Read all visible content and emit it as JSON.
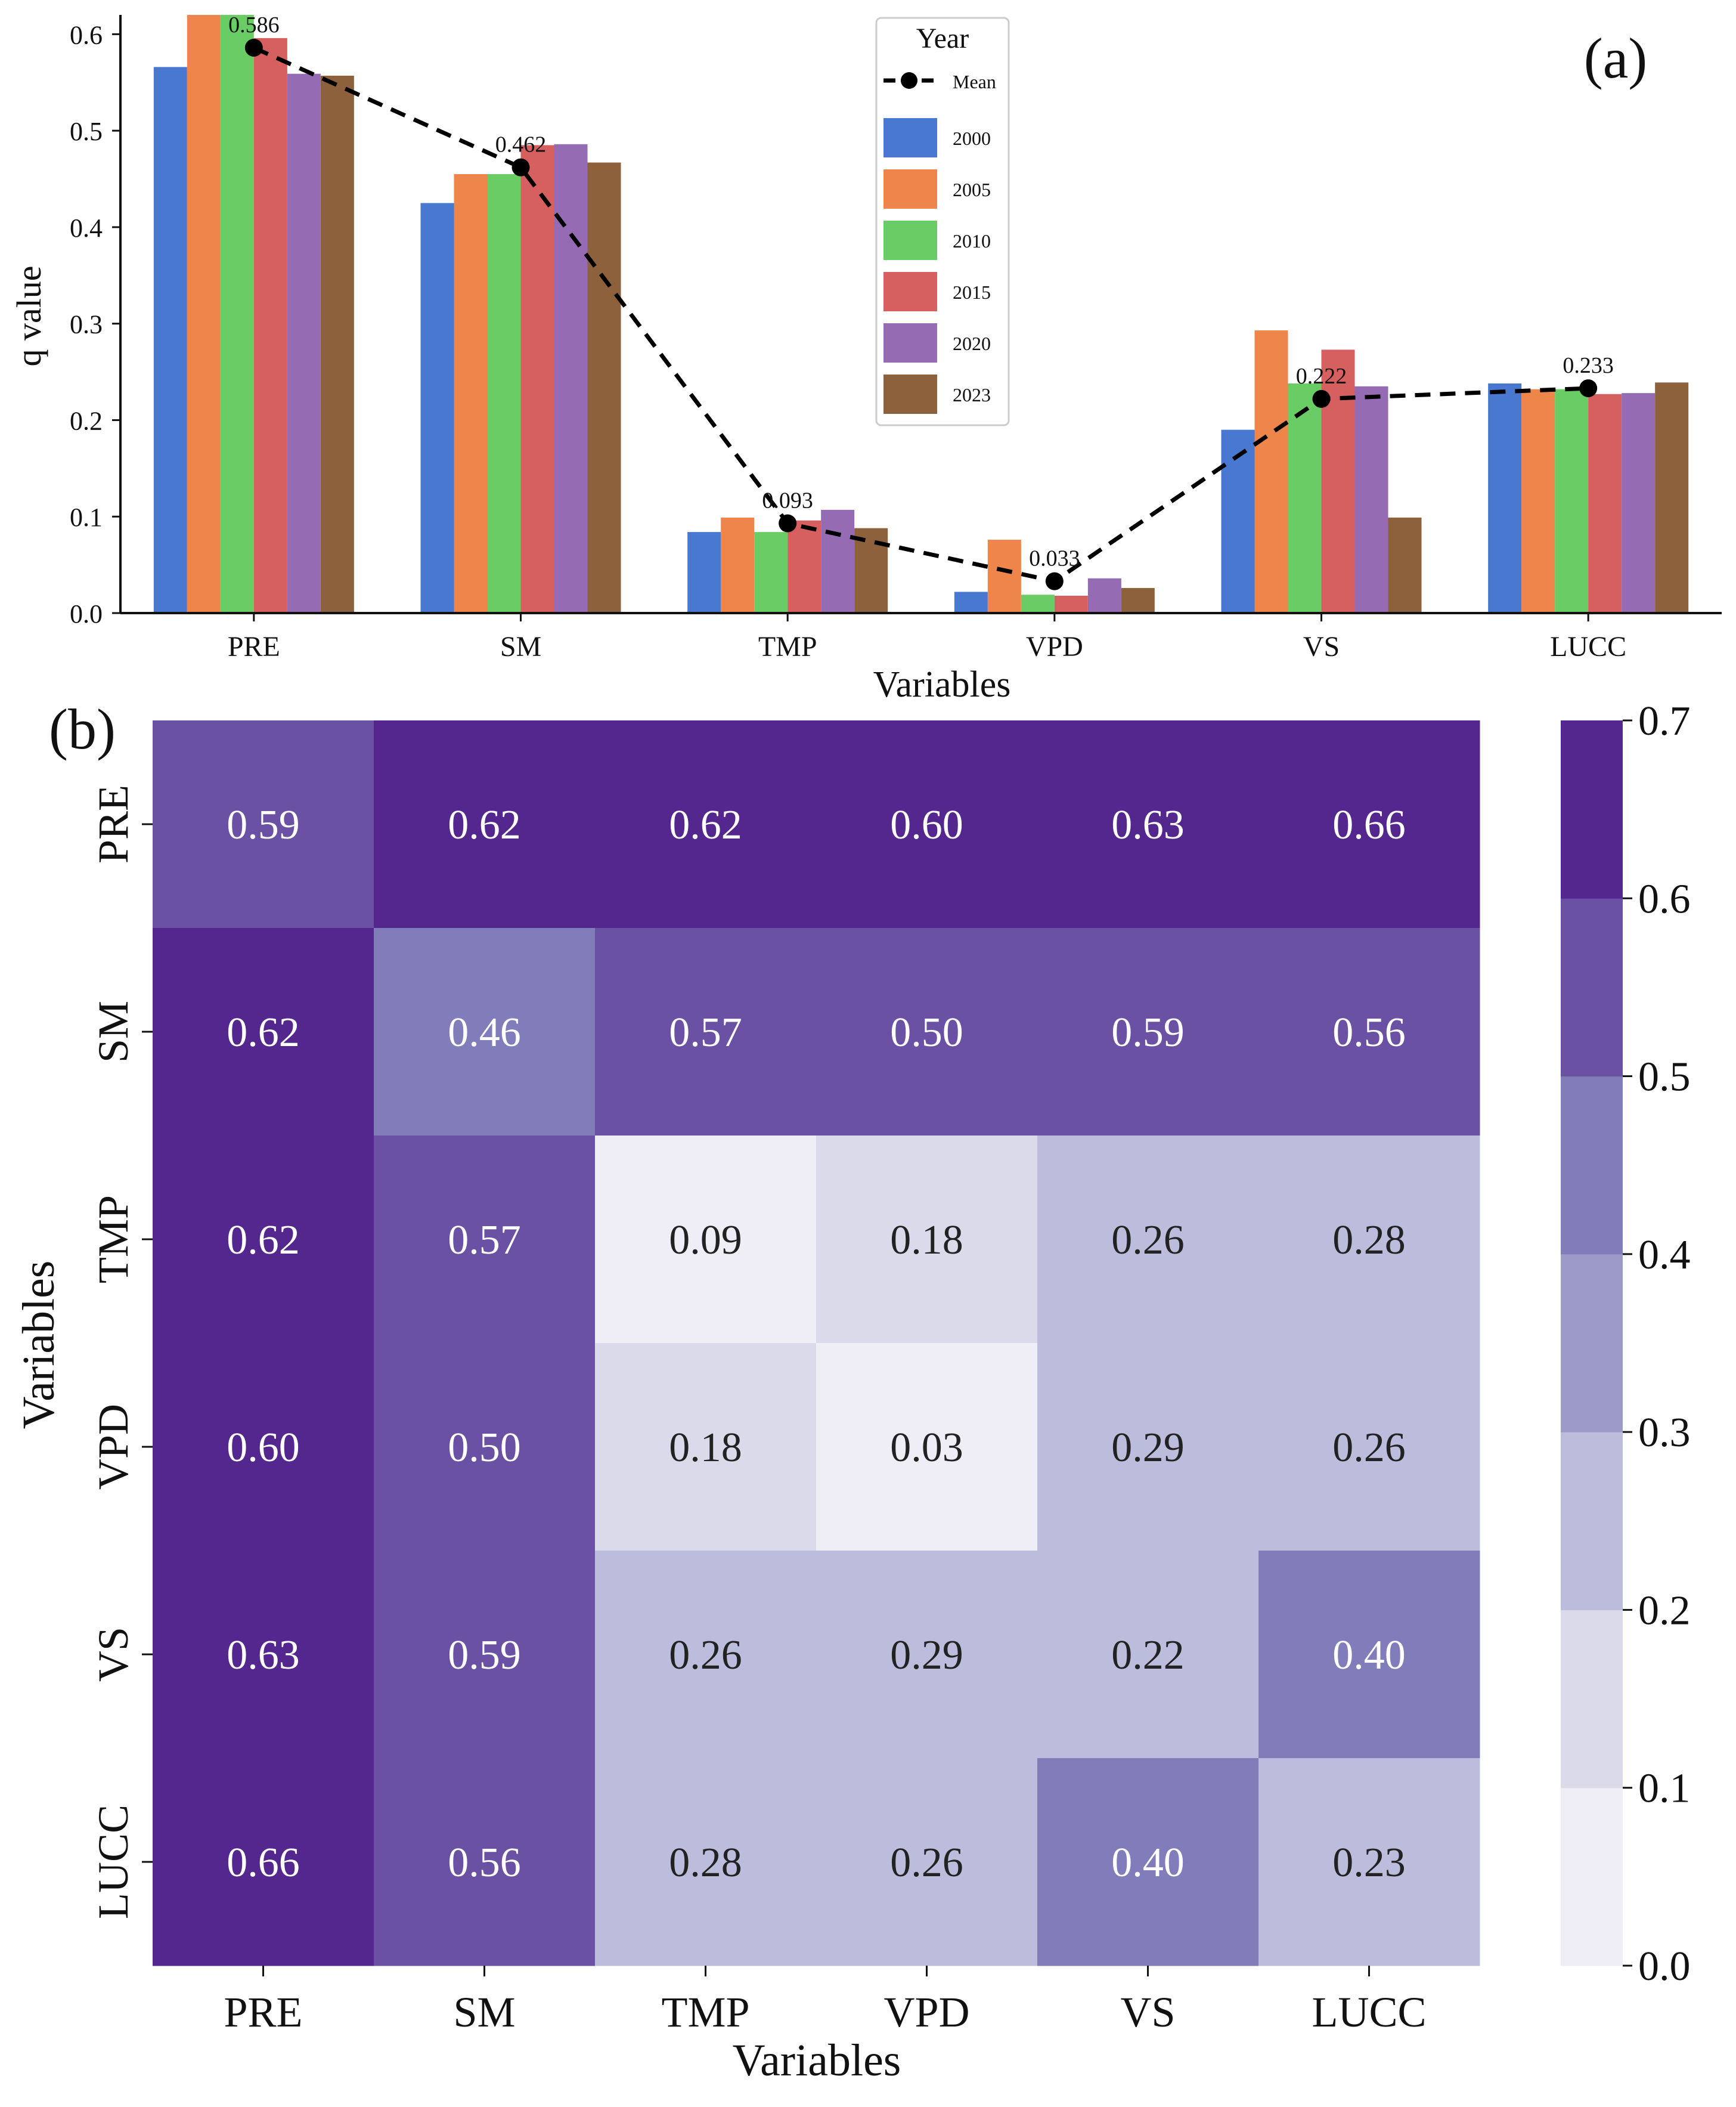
{
  "chart_data": [
    {
      "panel_label": "(a)",
      "type": "bar",
      "title": "",
      "xlabel": "Variables",
      "ylabel": "q value",
      "ylim": [
        0,
        0.62
      ],
      "yticks": [
        "0.0",
        "0.1",
        "0.2",
        "0.3",
        "0.4",
        "0.5",
        "0.6"
      ],
      "categories": [
        "PRE",
        "SM",
        "TMP",
        "VPD",
        "VS",
        "LUCC"
      ],
      "legend_title": "Year",
      "legend_position": "top-center",
      "series": [
        {
          "name": "2000",
          "color": "#4878d0",
          "values": [
            0.566,
            0.425,
            0.084,
            0.022,
            0.19,
            0.238
          ]
        },
        {
          "name": "2005",
          "color": "#ee854a",
          "values": [
            0.62,
            0.455,
            0.099,
            0.076,
            0.293,
            0.232
          ]
        },
        {
          "name": "2010",
          "color": "#6acc64",
          "values": [
            0.62,
            0.455,
            0.084,
            0.019,
            0.238,
            0.232
          ]
        },
        {
          "name": "2015",
          "color": "#d65f5f",
          "values": [
            0.596,
            0.485,
            0.096,
            0.018,
            0.273,
            0.227
          ]
        },
        {
          "name": "2020",
          "color": "#956cb4",
          "values": [
            0.559,
            0.486,
            0.107,
            0.036,
            0.235,
            0.228
          ]
        },
        {
          "name": "2023",
          "color": "#8c613c",
          "values": [
            0.557,
            0.467,
            0.088,
            0.026,
            0.099,
            0.239
          ]
        }
      ],
      "mean_line": {
        "name": "Mean",
        "values": [
          0.586,
          0.462,
          0.093,
          0.033,
          0.222,
          0.233
        ],
        "labels": [
          "0.586",
          "0.462",
          "0.093",
          "0.033",
          "0.222",
          "0.233"
        ]
      }
    },
    {
      "panel_label": "(b)",
      "type": "heatmap",
      "xlabel": "Variables",
      "ylabel": "Variables",
      "rows": [
        "PRE",
        "SM",
        "TMP",
        "VPD",
        "VS",
        "LUCC"
      ],
      "cols": [
        "PRE",
        "SM",
        "TMP",
        "VPD",
        "VS",
        "LUCC"
      ],
      "values": [
        [
          0.59,
          0.62,
          0.62,
          0.6,
          0.63,
          0.66
        ],
        [
          0.62,
          0.46,
          0.57,
          0.5,
          0.59,
          0.56
        ],
        [
          0.62,
          0.57,
          0.09,
          0.18,
          0.26,
          0.28
        ],
        [
          0.6,
          0.5,
          0.18,
          0.03,
          0.29,
          0.26
        ],
        [
          0.63,
          0.59,
          0.26,
          0.29,
          0.22,
          0.4
        ],
        [
          0.66,
          0.56,
          0.28,
          0.26,
          0.4,
          0.23
        ]
      ],
      "colorbar": {
        "range": [
          0.0,
          0.7
        ],
        "ticks": [
          "0.0",
          "0.1",
          "0.2",
          "0.3",
          "0.4",
          "0.5",
          "0.6",
          "0.7"
        ],
        "colors": [
          "#efedf5",
          "#dadaeb",
          "#bcbddc",
          "#9e9ac8",
          "#807dba",
          "#6a51a3",
          "#54278f"
        ]
      }
    }
  ]
}
